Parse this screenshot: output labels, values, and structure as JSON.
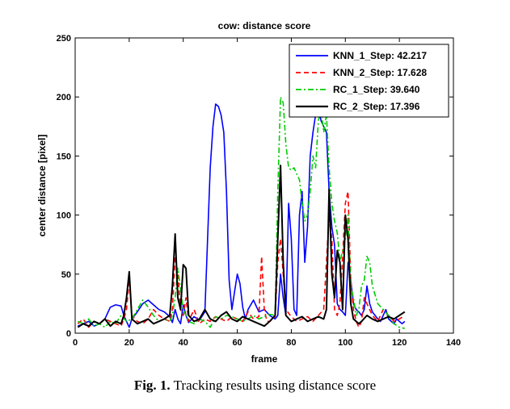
{
  "caption": {
    "label": "Fig. 1.",
    "text": " Tracking results using distance score"
  },
  "chart_data": {
    "type": "line",
    "title": "cow: distance score",
    "xlabel": "frame",
    "ylabel": "center distance [pixel]",
    "xlim": [
      0,
      140
    ],
    "ylim": [
      0,
      250
    ],
    "xticks": [
      0,
      20,
      40,
      60,
      80,
      100,
      120,
      140
    ],
    "yticks": [
      0,
      50,
      100,
      150,
      200,
      250
    ],
    "grid": false,
    "legend_position": "top-right",
    "series": [
      {
        "name": "KNN_1_Step: 42.217",
        "color": "#0000ff",
        "dash": "solid",
        "x": [
          1,
          3,
          5,
          7,
          9,
          11,
          13,
          15,
          17,
          18,
          19,
          20,
          21,
          23,
          25,
          27,
          29,
          31,
          33,
          35,
          36,
          37,
          38,
          39,
          40,
          41,
          42,
          44,
          46,
          48,
          50,
          51,
          52,
          53,
          54,
          55,
          56,
          57,
          58,
          59,
          60,
          61,
          62,
          63,
          64,
          66,
          68,
          70,
          72,
          74,
          75,
          76,
          77,
          78,
          79,
          80,
          81,
          82,
          83,
          84,
          85,
          86,
          87,
          88,
          89,
          90,
          91,
          92,
          93,
          94,
          95,
          96,
          97,
          98,
          99,
          100,
          101,
          102,
          103,
          104,
          105,
          106,
          107,
          108,
          109,
          110,
          111,
          112,
          113,
          114,
          115,
          116,
          117,
          118,
          119,
          120,
          121,
          122
        ],
        "y": [
          6,
          8,
          10,
          6,
          8,
          12,
          22,
          24,
          23,
          15,
          10,
          5,
          12,
          18,
          25,
          28,
          24,
          20,
          18,
          14,
          9,
          20,
          12,
          8,
          24,
          15,
          9,
          14,
          11,
          18,
          140,
          175,
          194,
          192,
          185,
          170,
          120,
          45,
          20,
          35,
          50,
          42,
          22,
          12,
          20,
          28,
          18,
          20,
          15,
          12,
          15,
          50,
          30,
          15,
          110,
          80,
          20,
          15,
          100,
          120,
          60,
          90,
          150,
          170,
          185,
          190,
          180,
          175,
          170,
          120,
          90,
          75,
          25,
          20,
          18,
          15,
          60,
          45,
          25,
          20,
          18,
          15,
          20,
          40,
          25,
          18,
          15,
          12,
          10,
          15,
          20,
          12,
          10,
          8,
          12,
          10,
          8,
          10
        ]
      },
      {
        "name": "KNN_2_Step: 17.628",
        "color": "#ff0000",
        "dash": "6,4",
        "x": [
          1,
          3,
          5,
          7,
          9,
          11,
          13,
          15,
          17,
          18,
          19,
          20,
          21,
          23,
          25,
          27,
          29,
          31,
          33,
          35,
          36,
          37,
          38,
          39,
          40,
          41,
          42,
          44,
          46,
          48,
          50,
          52,
          54,
          56,
          58,
          60,
          62,
          64,
          66,
          68,
          69,
          70,
          71,
          72,
          74,
          75,
          76,
          77,
          78,
          80,
          82,
          84,
          86,
          88,
          90,
          92,
          93,
          94,
          95,
          96,
          97,
          98,
          99,
          100,
          101,
          102,
          103,
          104,
          105,
          106,
          107,
          108,
          110,
          112,
          114,
          116,
          118,
          120,
          122
        ],
        "y": [
          8,
          12,
          5,
          10,
          8,
          12,
          10,
          8,
          6,
          12,
          20,
          45,
          15,
          10,
          8,
          12,
          20,
          15,
          12,
          10,
          20,
          65,
          50,
          20,
          15,
          30,
          10,
          20,
          8,
          12,
          10,
          14,
          12,
          10,
          14,
          12,
          10,
          18,
          12,
          14,
          65,
          20,
          10,
          10,
          14,
          60,
          80,
          50,
          20,
          14,
          10,
          12,
          14,
          10,
          15,
          20,
          60,
          100,
          80,
          20,
          15,
          25,
          65,
          110,
          120,
          45,
          20,
          10,
          5,
          10,
          30,
          25,
          15,
          10,
          20,
          15,
          10,
          12,
          15
        ]
      },
      {
        "name": "RC_1_Step: 39.640",
        "color": "#00cc00",
        "dash": "7,3,2,3",
        "x": [
          1,
          3,
          5,
          7,
          9,
          11,
          13,
          15,
          17,
          19,
          21,
          23,
          25,
          27,
          29,
          31,
          33,
          35,
          36,
          37,
          38,
          40,
          42,
          44,
          46,
          48,
          50,
          52,
          54,
          56,
          58,
          60,
          62,
          64,
          66,
          68,
          70,
          72,
          74,
          75,
          76,
          77,
          78,
          79,
          80,
          81,
          82,
          83,
          84,
          85,
          86,
          87,
          88,
          89,
          90,
          91,
          92,
          93,
          94,
          95,
          96,
          97,
          98,
          99,
          100,
          101,
          102,
          103,
          104,
          105,
          106,
          107,
          108,
          109,
          110,
          112,
          114,
          116,
          118,
          120,
          122
        ],
        "y": [
          10,
          8,
          12,
          6,
          8,
          5,
          10,
          8,
          15,
          10,
          12,
          20,
          28,
          22,
          15,
          10,
          12,
          10,
          15,
          30,
          55,
          20,
          10,
          8,
          12,
          10,
          5,
          14,
          12,
          15,
          14,
          12,
          10,
          12,
          15,
          12,
          14,
          16,
          15,
          120,
          200,
          195,
          160,
          140,
          138,
          140,
          135,
          130,
          110,
          95,
          100,
          120,
          150,
          140,
          180,
          190,
          170,
          185,
          140,
          110,
          95,
          85,
          60,
          70,
          80,
          100,
          40,
          30,
          15,
          20,
          40,
          45,
          65,
          60,
          40,
          25,
          20,
          15,
          8,
          5,
          4
        ]
      },
      {
        "name": "RC_2_Step: 17.396",
        "color": "#000000",
        "dash": "solid",
        "x": [
          1,
          3,
          5,
          7,
          9,
          11,
          13,
          15,
          17,
          18,
          19,
          20,
          21,
          23,
          25,
          27,
          29,
          31,
          33,
          35,
          36,
          37,
          38,
          39,
          40,
          41,
          42,
          44,
          46,
          48,
          50,
          52,
          54,
          56,
          58,
          60,
          62,
          64,
          66,
          68,
          70,
          72,
          74,
          75,
          76,
          77,
          78,
          80,
          82,
          84,
          86,
          88,
          90,
          92,
          93,
          94,
          95,
          96,
          97,
          98,
          99,
          100,
          101,
          102,
          103,
          104,
          105,
          106,
          108,
          110,
          112,
          114,
          116,
          118,
          120,
          122
        ],
        "y": [
          5,
          8,
          6,
          10,
          8,
          12,
          6,
          10,
          8,
          15,
          30,
          52,
          12,
          8,
          10,
          12,
          8,
          10,
          12,
          15,
          40,
          84,
          30,
          20,
          58,
          55,
          15,
          10,
          12,
          20,
          12,
          10,
          15,
          18,
          12,
          10,
          14,
          12,
          10,
          8,
          6,
          10,
          15,
          80,
          142,
          60,
          15,
          10,
          12,
          14,
          10,
          12,
          14,
          12,
          20,
          122,
          50,
          30,
          70,
          60,
          20,
          100,
          80,
          25,
          12,
          10,
          8,
          10,
          15,
          12,
          10,
          12,
          14,
          12,
          15,
          18
        ]
      }
    ]
  }
}
